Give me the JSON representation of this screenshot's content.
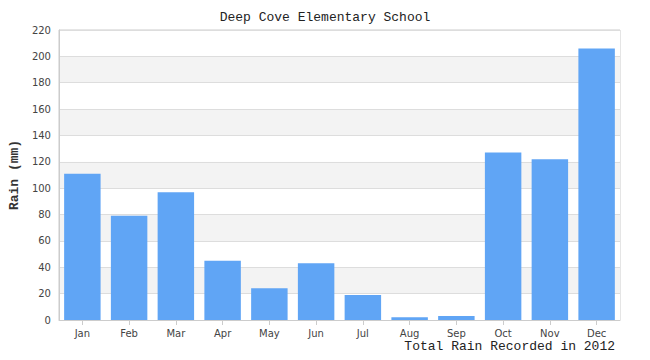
{
  "chart_data": {
    "type": "bar",
    "title": "Deep Cove Elementary School",
    "xlabel": "Total Rain Recorded in 2012",
    "ylabel": "Rain (mm)",
    "categories": [
      "Jan",
      "Feb",
      "Mar",
      "Apr",
      "May",
      "Jun",
      "Jul",
      "Aug",
      "Sep",
      "Oct",
      "Nov",
      "Dec"
    ],
    "values": [
      111,
      79,
      97,
      45,
      24,
      43,
      19,
      2,
      3,
      127,
      122,
      206
    ],
    "color": "#60a5f5",
    "ylim": [
      0,
      220
    ],
    "yticks": [
      0,
      20,
      40,
      60,
      80,
      100,
      120,
      140,
      160,
      180,
      200,
      220
    ],
    "grid": true
  }
}
